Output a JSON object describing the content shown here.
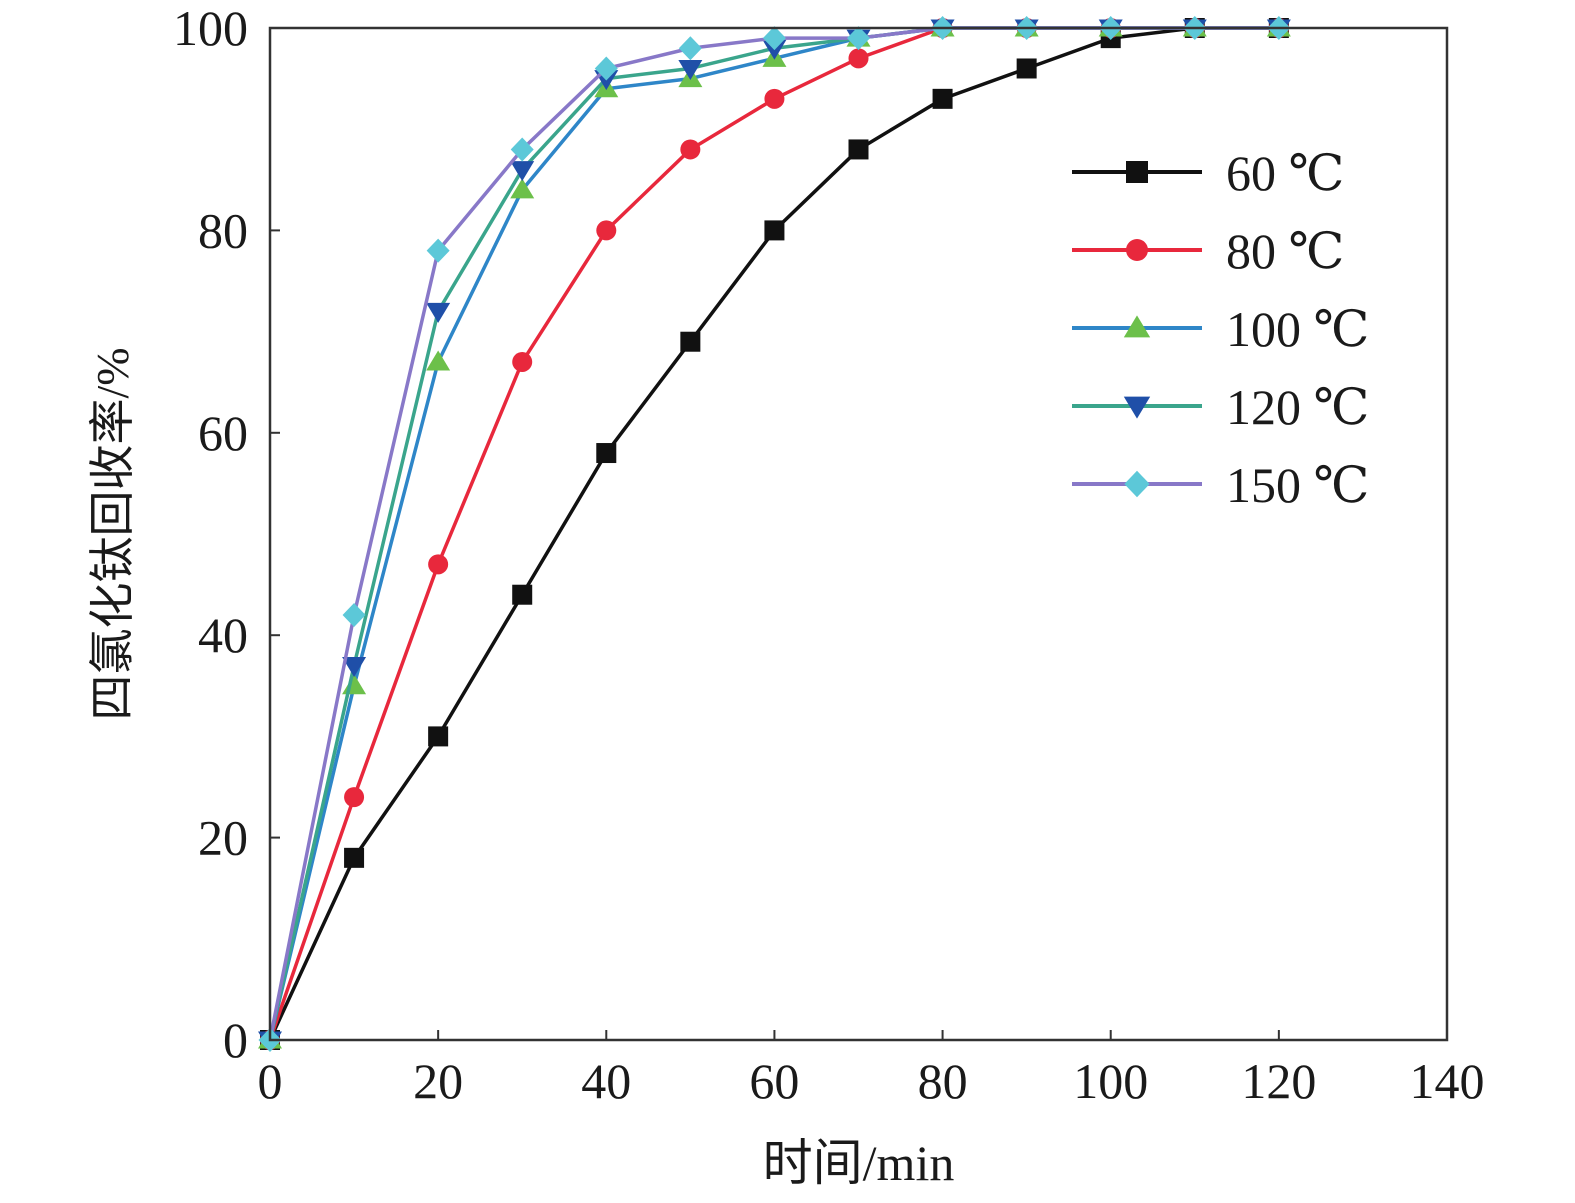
{
  "chart_data": {
    "type": "line",
    "title": "",
    "xlabel": "时间/min",
    "ylabel": "四氯化钛回收率/%",
    "xlim": [
      0,
      140
    ],
    "ylim": [
      0,
      100
    ],
    "xticks": [
      "0",
      "20",
      "40",
      "60",
      "80",
      "100",
      "120",
      "140"
    ],
    "yticks": [
      "0",
      "20",
      "40",
      "60",
      "80",
      "100"
    ],
    "grid": false,
    "legend_position": "top-right",
    "series": [
      {
        "name": "60 ℃",
        "color": "#111111",
        "marker": "square",
        "x": [
          0,
          10,
          20,
          30,
          40,
          50,
          60,
          70,
          80,
          90,
          100,
          110,
          120
        ],
        "y": [
          0,
          18,
          30,
          44,
          58,
          69,
          80,
          88,
          93,
          96,
          99,
          100,
          100
        ]
      },
      {
        "name": "80 ℃",
        "color": "#e8283c",
        "marker": "circle",
        "x": [
          0,
          10,
          20,
          30,
          40,
          50,
          60,
          70,
          80,
          90,
          100,
          110,
          120
        ],
        "y": [
          0,
          24,
          47,
          67,
          80,
          88,
          93,
          97,
          100,
          100,
          100,
          100,
          100
        ]
      },
      {
        "name": "100 ℃",
        "color": "#2e86c8",
        "marker": "triangle-up",
        "marker_color": "#6cc04a",
        "x": [
          0,
          10,
          20,
          30,
          40,
          50,
          60,
          70,
          80,
          90,
          100,
          110,
          120
        ],
        "y": [
          0,
          35,
          67,
          84,
          94,
          95,
          97,
          99,
          100,
          100,
          100,
          100,
          100
        ]
      },
      {
        "name": "120 ℃",
        "color": "#3aa58c",
        "marker": "triangle-down",
        "marker_color": "#1f4fa8",
        "x": [
          0,
          10,
          20,
          30,
          40,
          50,
          60,
          70,
          80,
          90,
          100,
          110,
          120
        ],
        "y": [
          0,
          37,
          72,
          86,
          95,
          96,
          98,
          99,
          100,
          100,
          100,
          100,
          100
        ]
      },
      {
        "name": "150 ℃",
        "color": "#8878c8",
        "marker": "diamond",
        "marker_color": "#5cc8d8",
        "x": [
          0,
          10,
          20,
          30,
          40,
          50,
          60,
          70,
          80,
          90,
          100,
          110,
          120
        ],
        "y": [
          0,
          42,
          78,
          88,
          96,
          98,
          99,
          99,
          100,
          100,
          100,
          100,
          100
        ]
      }
    ]
  }
}
